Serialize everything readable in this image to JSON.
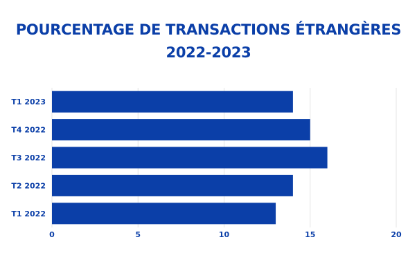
{
  "chart_data": {
    "type": "bar",
    "orientation": "horizontal",
    "title": "POURCENTAGE DE TRANSACTIONS ÉTRANGÈRES",
    "subtitle": "2022-2023",
    "categories": [
      "T1 2023",
      "T4 2022",
      "T3 2022",
      "T2 2022",
      "T1 2022"
    ],
    "series": [
      {
        "values": [
          14,
          15,
          16,
          14,
          13
        ]
      }
    ],
    "xlim": [
      0,
      20
    ],
    "xticks": [
      0,
      5,
      10,
      15,
      20
    ],
    "grid": true,
    "bar_color": "#0b3fa8",
    "text_color": "#0b3fa8",
    "grid_color": "#e4e4e4"
  }
}
